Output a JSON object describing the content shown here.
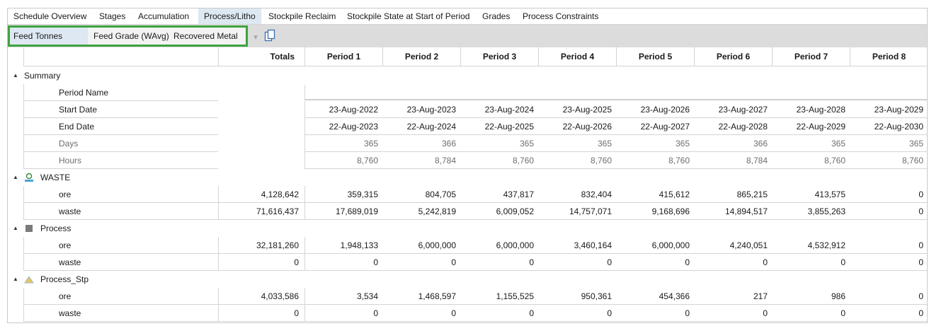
{
  "tabs": [
    {
      "label": "Schedule Overview",
      "active": false
    },
    {
      "label": "Stages",
      "active": false
    },
    {
      "label": "Accumulation",
      "active": false
    },
    {
      "label": "Process/Litho",
      "active": true
    },
    {
      "label": "Stockpile Reclaim",
      "active": false
    },
    {
      "label": "Stockpile State at Start of Period",
      "active": false
    },
    {
      "label": "Grades",
      "active": false
    },
    {
      "label": "Process Constraints",
      "active": false
    }
  ],
  "subtabs": [
    {
      "label": "Feed Tonnes",
      "active": true
    },
    {
      "label": "Feed Grade (WAvg)",
      "active": false
    },
    {
      "label": "Recovered Metal",
      "active": false
    }
  ],
  "icons": {
    "copy": "copy-icon",
    "filter": "filter-icon"
  },
  "grid": {
    "totals_header": "Totals",
    "periods": [
      "Period 1",
      "Period 2",
      "Period 3",
      "Period 4",
      "Period 5",
      "Period 6",
      "Period 7",
      "Period 8"
    ],
    "summary": {
      "label": "Summary",
      "rows": [
        {
          "label": "Period Name",
          "muted": false,
          "values": [
            "",
            "",
            "",
            "",
            "",
            "",
            "",
            ""
          ]
        },
        {
          "label": "Start Date",
          "muted": false,
          "values": [
            "23-Aug-2022",
            "23-Aug-2023",
            "23-Aug-2024",
            "23-Aug-2025",
            "23-Aug-2026",
            "23-Aug-2027",
            "23-Aug-2028",
            "23-Aug-2029"
          ]
        },
        {
          "label": "End Date",
          "muted": false,
          "values": [
            "22-Aug-2023",
            "22-Aug-2024",
            "22-Aug-2025",
            "22-Aug-2026",
            "22-Aug-2027",
            "22-Aug-2028",
            "22-Aug-2029",
            "22-Aug-2030"
          ]
        },
        {
          "label": "Days",
          "muted": true,
          "values": [
            "365",
            "366",
            "365",
            "365",
            "365",
            "366",
            "365",
            "365"
          ]
        },
        {
          "label": "Hours",
          "muted": true,
          "values": [
            "8,760",
            "8,784",
            "8,760",
            "8,760",
            "8,760",
            "8,784",
            "8,760",
            "8,760"
          ]
        }
      ]
    },
    "groups": [
      {
        "label": "WASTE",
        "icon": "dump-icon",
        "rows": [
          {
            "label": "ore",
            "total": "4,128,642",
            "values": [
              "359,315",
              "804,705",
              "437,817",
              "832,404",
              "415,612",
              "865,215",
              "413,575",
              "0"
            ]
          },
          {
            "label": "waste",
            "total": "71,616,437",
            "values": [
              "17,689,019",
              "5,242,819",
              "6,009,052",
              "14,757,071",
              "9,168,696",
              "14,894,517",
              "3,855,263",
              "0"
            ]
          }
        ]
      },
      {
        "label": "Process",
        "icon": "process-icon",
        "rows": [
          {
            "label": "ore",
            "total": "32,181,260",
            "values": [
              "1,948,133",
              "6,000,000",
              "6,000,000",
              "3,460,164",
              "6,000,000",
              "4,240,051",
              "4,532,912",
              "0"
            ]
          },
          {
            "label": "waste",
            "total": "0",
            "values": [
              "0",
              "0",
              "0",
              "0",
              "0",
              "0",
              "0",
              "0"
            ]
          }
        ]
      },
      {
        "label": "Process_Stp",
        "icon": "stockpile-icon",
        "rows": [
          {
            "label": "ore",
            "total": "4,033,586",
            "values": [
              "3,534",
              "1,468,597",
              "1,155,525",
              "950,361",
              "454,366",
              "217",
              "986",
              "0"
            ]
          },
          {
            "label": "waste",
            "total": "0",
            "values": [
              "0",
              "0",
              "0",
              "0",
              "0",
              "0",
              "0",
              "0"
            ]
          }
        ]
      }
    ]
  }
}
